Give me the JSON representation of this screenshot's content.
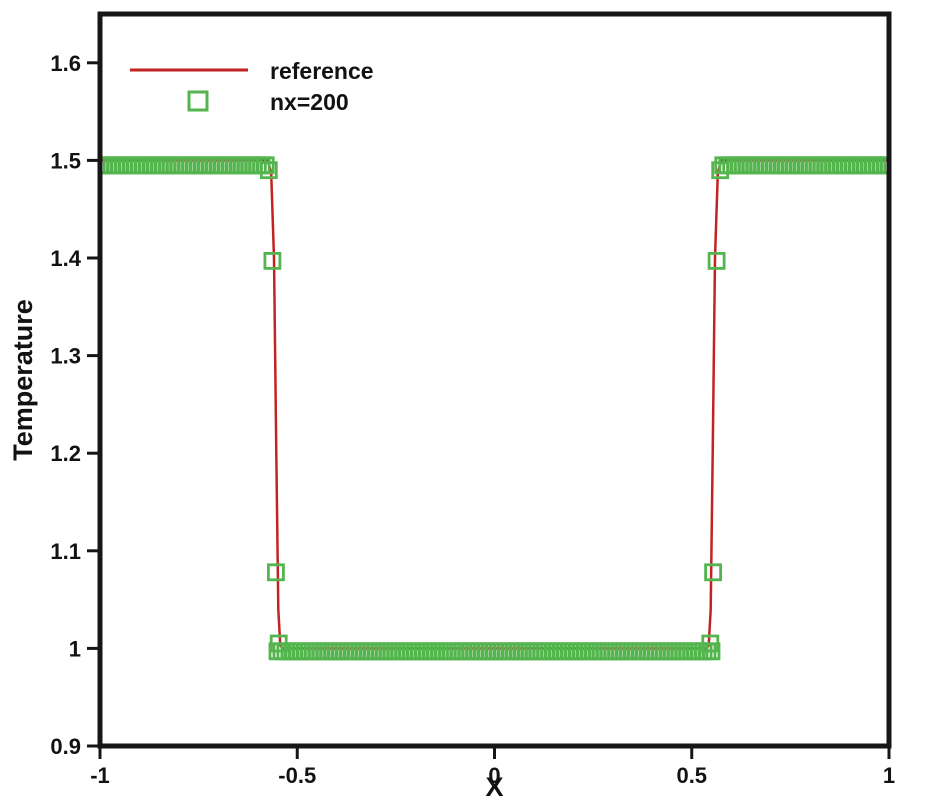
{
  "chart_data": {
    "type": "line",
    "title": "",
    "xlabel": "X",
    "ylabel": "Temperature",
    "xlim": [
      -1,
      1
    ],
    "ylim": [
      0.9,
      1.65
    ],
    "grid": false,
    "background": "#ffffff",
    "frame_color": "#161616",
    "x_ticks": {
      "values": [
        -1,
        -0.5,
        0,
        0.5,
        1
      ],
      "labels": [
        "-1",
        "-0.5",
        "0",
        "0.5",
        "1"
      ]
    },
    "y_ticks": {
      "values": [
        0.9,
        1.0,
        1.1,
        1.2,
        1.3,
        1.4,
        1.5,
        1.6
      ],
      "labels": [
        "0.9",
        "1",
        "1.1",
        "1.2",
        "1.3",
        "1.4",
        "1.5",
        "1.6"
      ]
    },
    "legend": {
      "position": "top-left",
      "entries": [
        {
          "label": "reference",
          "type": "line",
          "color": "#c32222"
        },
        {
          "label": "nx=200",
          "type": "open-square",
          "color": "#54b44e"
        }
      ]
    },
    "series": [
      {
        "name": "reference",
        "type": "line",
        "color": "#c32222",
        "line_width": 2.5,
        "points": [
          [
            -1,
            1.5
          ],
          [
            -0.575,
            1.5
          ],
          [
            -0.566,
            1.487
          ],
          [
            -0.559,
            1.4
          ],
          [
            -0.553,
            1.2
          ],
          [
            -0.548,
            1.04
          ],
          [
            -0.543,
            1.003
          ],
          [
            -0.537,
            1.0
          ],
          [
            0.537,
            1.0
          ],
          [
            0.543,
            1.003
          ],
          [
            0.548,
            1.04
          ],
          [
            0.553,
            1.2
          ],
          [
            0.559,
            1.4
          ],
          [
            0.566,
            1.487
          ],
          [
            0.575,
            1.5
          ],
          [
            1,
            1.5
          ]
        ]
      },
      {
        "name": "nx=200",
        "type": "scatter",
        "marker": "open-square",
        "color": "#54b44e",
        "marker_size": 15,
        "marker_stroke": 2.8,
        "segments": [
          {
            "x0": -1.0,
            "x1": -0.58,
            "step": 0.01,
            "y": 1.495
          },
          {
            "points": [
              [
                -0.572,
                1.49
              ],
              [
                -0.563,
                1.397
              ],
              [
                -0.554,
                1.078
              ],
              [
                -0.547,
                1.005
              ]
            ]
          },
          {
            "x0": -0.55,
            "x1": 0.55,
            "step": 0.01,
            "y": 0.997
          },
          {
            "points": [
              [
                0.547,
                1.005
              ],
              [
                0.554,
                1.078
              ],
              [
                0.563,
                1.397
              ],
              [
                0.572,
                1.49
              ]
            ]
          },
          {
            "x0": 0.58,
            "x1": 1.0,
            "step": 0.01,
            "y": 1.495
          }
        ]
      }
    ]
  }
}
